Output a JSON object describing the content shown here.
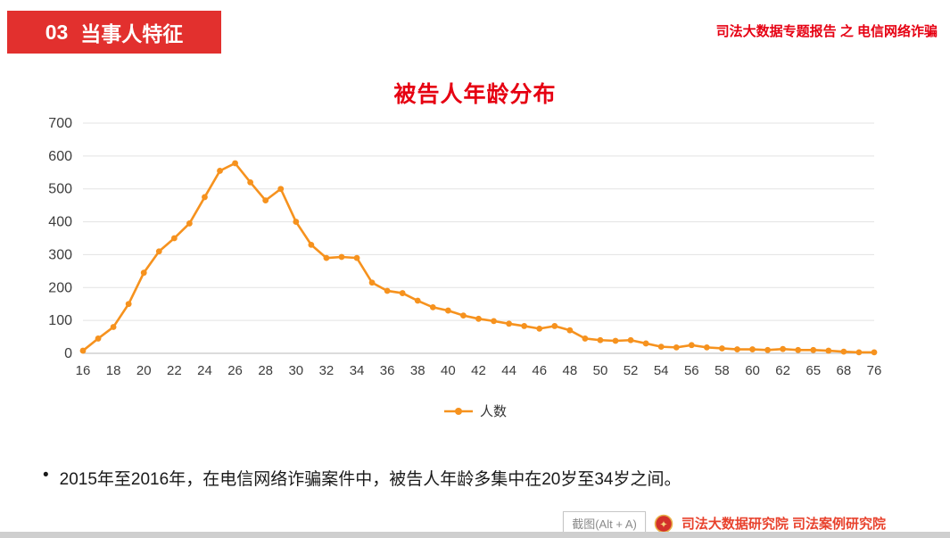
{
  "header": {
    "section_number": "03",
    "section_label": "当事人特征",
    "report_label": "司法大数据专题报告 之 电信网络诈骗"
  },
  "chart_data": {
    "type": "line",
    "title": "被告人年龄分布",
    "series_name": "人数",
    "line_color": "#f6921e",
    "ylim": [
      0,
      700
    ],
    "y_ticks": [
      0,
      100,
      200,
      300,
      400,
      500,
      600,
      700
    ],
    "grid": "horizontal",
    "legend_position": "bottom",
    "x_tick_labels": [
      "16",
      "18",
      "20",
      "22",
      "24",
      "26",
      "28",
      "30",
      "32",
      "34",
      "36",
      "38",
      "40",
      "42",
      "44",
      "46",
      "48",
      "50",
      "52",
      "54",
      "56",
      "58",
      "60",
      "62",
      "65",
      "68",
      "76"
    ],
    "values": [
      8,
      45,
      80,
      150,
      245,
      310,
      350,
      395,
      475,
      555,
      578,
      520,
      465,
      500,
      400,
      330,
      290,
      293,
      290,
      215,
      190,
      183,
      160,
      140,
      130,
      115,
      105,
      98,
      90,
      83,
      75,
      83,
      70,
      45,
      40,
      38,
      40,
      30,
      20,
      18,
      25,
      18,
      15,
      12,
      12,
      10,
      13,
      10,
      10,
      8,
      5,
      3,
      3
    ]
  },
  "bullet": {
    "marker": "•",
    "text": "2015年至2016年，在电信网络诈骗案件中，被告人年龄多集中在20岁至34岁之间。"
  },
  "footer": {
    "screenshot_tool_label": "截图(Alt + A)",
    "org_label": "司法大数据研究院  司法案例研究院"
  },
  "colors": {
    "accent_red": "#e60012",
    "badge_red": "#e2302e",
    "line_orange": "#f6921e",
    "grid_gray": "#e3e3e3"
  }
}
